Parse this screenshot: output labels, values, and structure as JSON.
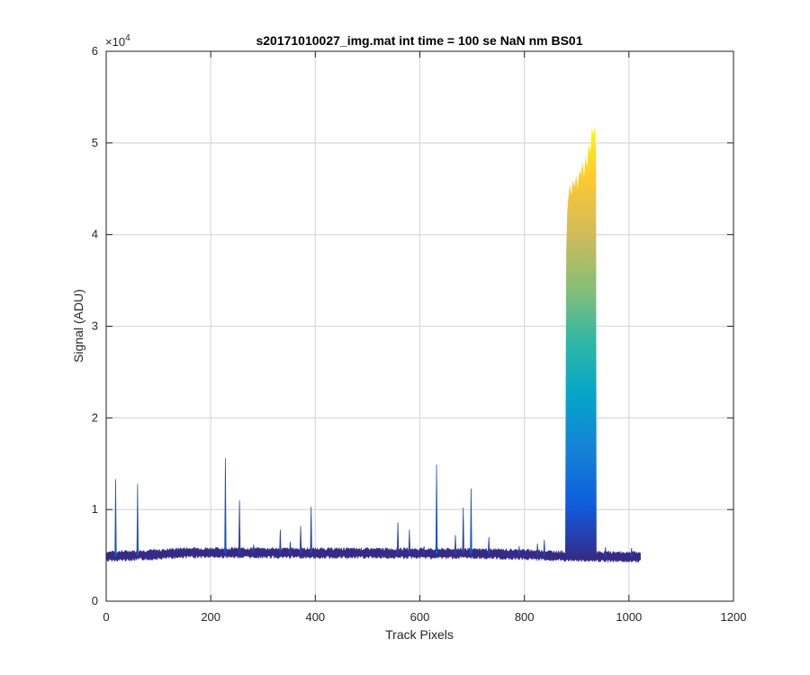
{
  "chart_data": {
    "type": "area",
    "title": "s20171010027_img.mat int time = 100 se  NaN nm BS01",
    "xlabel": "Track Pixels",
    "ylabel": "Signal (ADU)",
    "xlim": [
      0,
      1200
    ],
    "ylim": [
      0,
      60000
    ],
    "y_exponent_label": "×10",
    "y_exponent_power": "4",
    "x_ticks": [
      0,
      200,
      400,
      600,
      800,
      1000,
      1200
    ],
    "x_tick_labels": [
      "0",
      "200",
      "400",
      "600",
      "800",
      "1000",
      "1200"
    ],
    "y_ticks": [
      0,
      10000,
      20000,
      30000,
      40000,
      50000,
      60000
    ],
    "y_tick_labels": [
      "0",
      "1",
      "2",
      "3",
      "4",
      "5",
      "6"
    ],
    "grid": true,
    "colormap": "parula",
    "colors": [
      "#352a87",
      "#0f5cdd",
      "#1481d6",
      "#06a4ca",
      "#2eb7a4",
      "#87bf77",
      "#d1bb59",
      "#fec832",
      "#f9fb0e"
    ],
    "baseline": [
      {
        "x": 0,
        "y": 4900
      },
      {
        "x": 100,
        "y": 5100
      },
      {
        "x": 150,
        "y": 5300
      },
      {
        "x": 400,
        "y": 5250
      },
      {
        "x": 700,
        "y": 5200
      },
      {
        "x": 800,
        "y": 5100
      },
      {
        "x": 880,
        "y": 4900
      },
      {
        "x": 1022,
        "y": 4850
      }
    ],
    "spikes": [
      {
        "x": 18,
        "y": 13300
      },
      {
        "x": 60,
        "y": 12800
      },
      {
        "x": 228,
        "y": 15600
      },
      {
        "x": 255,
        "y": 11000
      },
      {
        "x": 282,
        "y": 6200
      },
      {
        "x": 333,
        "y": 7800
      },
      {
        "x": 352,
        "y": 6500
      },
      {
        "x": 372,
        "y": 8200
      },
      {
        "x": 392,
        "y": 10300
      },
      {
        "x": 558,
        "y": 8600
      },
      {
        "x": 580,
        "y": 7800
      },
      {
        "x": 608,
        "y": 6000
      },
      {
        "x": 632,
        "y": 14900
      },
      {
        "x": 668,
        "y": 7200
      },
      {
        "x": 683,
        "y": 10200
      },
      {
        "x": 698,
        "y": 12300
      },
      {
        "x": 732,
        "y": 7000
      },
      {
        "x": 790,
        "y": 6000
      },
      {
        "x": 825,
        "y": 6300
      },
      {
        "x": 838,
        "y": 6700
      },
      {
        "x": 955,
        "y": 5900
      },
      {
        "x": 1005,
        "y": 5800
      }
    ],
    "peak_block": [
      {
        "x": 878,
        "y": 4900
      },
      {
        "x": 880,
        "y": 38000
      },
      {
        "x": 882,
        "y": 42500
      },
      {
        "x": 884,
        "y": 44000
      },
      {
        "x": 887,
        "y": 45500
      },
      {
        "x": 890,
        "y": 44300
      },
      {
        "x": 893,
        "y": 46000
      },
      {
        "x": 896,
        "y": 45200
      },
      {
        "x": 899,
        "y": 46500
      },
      {
        "x": 902,
        "y": 45000
      },
      {
        "x": 905,
        "y": 47000
      },
      {
        "x": 908,
        "y": 46500
      },
      {
        "x": 911,
        "y": 48000
      },
      {
        "x": 914,
        "y": 46200
      },
      {
        "x": 917,
        "y": 48600
      },
      {
        "x": 920,
        "y": 47300
      },
      {
        "x": 923,
        "y": 50000
      },
      {
        "x": 926,
        "y": 48900
      },
      {
        "x": 929,
        "y": 51600
      },
      {
        "x": 932,
        "y": 50900
      },
      {
        "x": 935,
        "y": 51900
      },
      {
        "x": 937,
        "y": 49000
      },
      {
        "x": 938,
        "y": 5500
      },
      {
        "x": 940,
        "y": 4900
      }
    ]
  }
}
